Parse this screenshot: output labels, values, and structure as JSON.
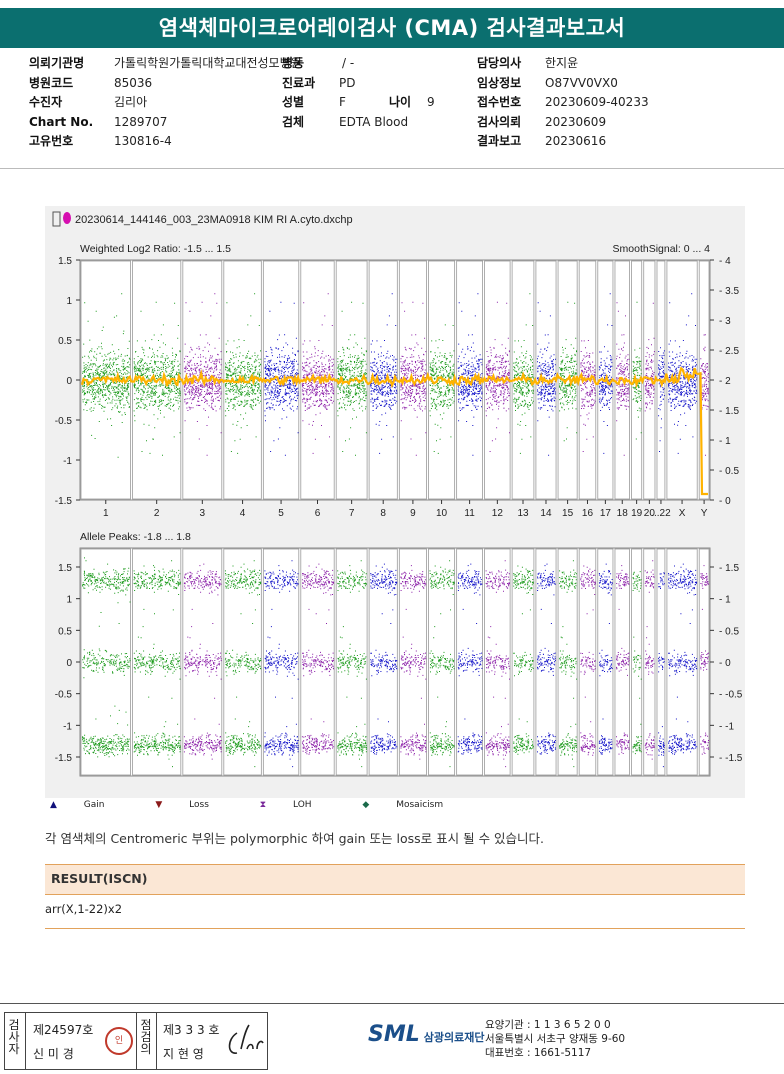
{
  "header": {
    "title": "염색체마이크로어레이검사 (CMA) 검사결과보고서"
  },
  "info": {
    "col1": [
      {
        "label": "의뢰기관명",
        "value": "가톨릭학원가톨릭대학교대전성모병원"
      },
      {
        "label": "병원코드",
        "value": "85036"
      },
      {
        "label": "수진자",
        "value": "김리아"
      },
      {
        "label": "Chart No.",
        "value": "1289707"
      },
      {
        "label": "고유번호",
        "value": "130816-4"
      }
    ],
    "col2": [
      {
        "label": "병동",
        "value": "/ -"
      },
      {
        "label": "진료과",
        "value": "PD"
      },
      {
        "label": "성별",
        "value": "F"
      },
      {
        "label": "검체",
        "value": "EDTA Blood"
      }
    ],
    "age": {
      "label": "나이",
      "value": "9"
    },
    "col3": [
      {
        "label": "담당의사",
        "value": "한지윤"
      },
      {
        "label": "임상정보",
        "value": "O87VV0VX0"
      },
      {
        "label": "접수번호",
        "value": "20230609-40233"
      },
      {
        "label": "검사의뢰",
        "value": "20230609"
      },
      {
        "label": "결과보고",
        "value": "20230616"
      }
    ]
  },
  "plot": {
    "filename": "20230614_144146_003_23MA0918 KIM RI A.cyto.dxchp",
    "panel1_title": "Weighted Log2 Ratio: -1.5 ... 1.5",
    "panel1_right_title": "SmoothSignal: 0 ... 4",
    "panel1_left_ticks": [
      "1.5",
      "1",
      "0.5",
      "0",
      "-0.5",
      "-1",
      "-1.5"
    ],
    "panel1_right_ticks": [
      "4",
      "3.5",
      "3",
      "2.5",
      "2",
      "1.5",
      "1",
      "0.5",
      "0"
    ],
    "panel2_title": "Allele Peaks: -1.8 ... 1.8",
    "panel2_left_ticks": [
      "1.5",
      "1",
      "0.5",
      "0",
      "-0.5",
      "-1",
      "-1.5"
    ],
    "panel2_right_ticks": [
      "1.5",
      "1",
      "0.5",
      "0",
      "-0.5",
      "-1",
      "-1.5"
    ],
    "chromosomes": [
      "1",
      "2",
      "3",
      "4",
      "5",
      "6",
      "7",
      "8",
      "9",
      "10",
      "11",
      "12",
      "13",
      "14",
      "15",
      "16",
      "17",
      "18",
      "19",
      "20",
      "...22",
      "X",
      "Y"
    ],
    "chromosome_colors": [
      "#1a9a1a",
      "#1a9a1a",
      "#8b1fa8",
      "#1a9a1a",
      "#1010c8",
      "#8b1fa8",
      "#1a9a1a",
      "#1010c8",
      "#8b1fa8",
      "#1a9a1a",
      "#1010c8",
      "#8b1fa8",
      "#1a9a1a",
      "#1010c8",
      "#1a9a1a",
      "#8b1fa8",
      "#1010c8",
      "#8b1fa8",
      "#1a9a1a",
      "#8b1fa8",
      "#1010c8",
      "#1010c8",
      "#8b1fa8"
    ],
    "smooth_color": "#ffb300"
  },
  "legend": {
    "gain": "Gain",
    "loss": "Loss",
    "loh": "LOH",
    "mosaicism": "Mosaicism"
  },
  "note": "각 염색체의 Centromeric 부위는 polymorphic 하여 gain 또는 loss로 표시 될 수 있습니다.",
  "result": {
    "heading": "RESULT(ISCN)",
    "value": "arr(X,1-22)x2"
  },
  "footer": {
    "reviewer_label": "검사자",
    "reviewer_no": "제24597호",
    "reviewer_name": "신 미 경",
    "seal_text": "인",
    "checker_label": "점검의",
    "checker_no": "제3 3 3 호",
    "checker_name": "지 현 영",
    "org_logo": "SML",
    "org_name": "삼광의료재단",
    "addr1": "요양기관 : 1 1 3 6 5 2 0 0",
    "addr2": "서울특별시 서초구 양재동 9-60",
    "addr3": "대표번호 : 1661-5117"
  }
}
